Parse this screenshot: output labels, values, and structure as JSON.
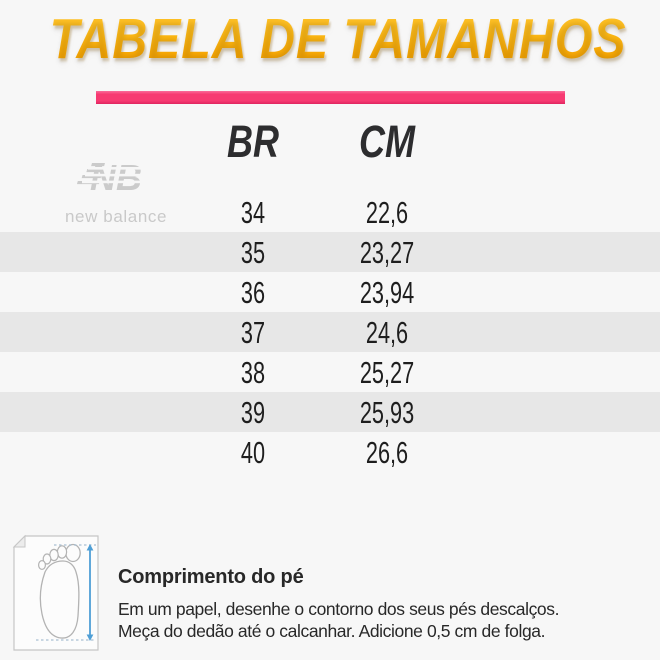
{
  "page": {
    "background": "#f7f7f7"
  },
  "title": {
    "text": "TABELA DE TAMANHOS",
    "color": "#fbb216",
    "underline_color": "#f73a72"
  },
  "brand": {
    "name": "new balance",
    "mark": "NB",
    "color": "#cbcbcb"
  },
  "table": {
    "columns": [
      {
        "key": "br",
        "label": "BR"
      },
      {
        "key": "cm",
        "label": "CM"
      }
    ],
    "rows": [
      {
        "br": "34",
        "cm": "22,6"
      },
      {
        "br": "35",
        "cm": "23,27"
      },
      {
        "br": "36",
        "cm": "23,94"
      },
      {
        "br": "37",
        "cm": "24,6"
      },
      {
        "br": "38",
        "cm": "25,27"
      },
      {
        "br": "39",
        "cm": "25,93"
      },
      {
        "br": "40",
        "cm": "26,6"
      }
    ],
    "stripe_color": "#e7e7e7",
    "text_color": "#1e1e1e"
  },
  "footer": {
    "heading": "Comprimento do pé",
    "line1": "Em um papel, desenhe o contorno dos seus pés descalços.",
    "line2": "Meça do dedão até o calcanhar. Adicione 0,5 cm de folga.",
    "icon": "foot-measure-icon",
    "arrow_color": "#4f9fd6"
  }
}
